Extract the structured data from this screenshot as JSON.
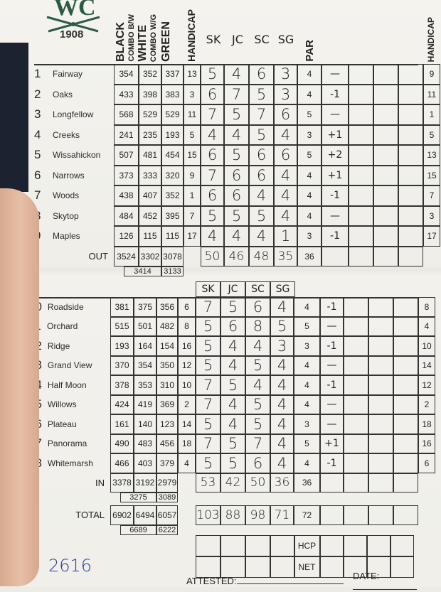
{
  "logo": {
    "letters": "WC",
    "year": "1908",
    "color": "#2d5a45"
  },
  "header": {
    "columns": [
      "BLACK",
      "COMBO B/W",
      "WHITE",
      "COMBO W/G",
      "GREEN",
      "HANDICAP"
    ],
    "players": [
      "SK",
      "JC",
      "SC",
      "SG"
    ],
    "par_label": "PAR",
    "right_handicap_label": "HANDICAP"
  },
  "front": {
    "holes": [
      {
        "num": "1",
        "name": "Fairway",
        "black": "354",
        "white": "352",
        "green": "337",
        "hcp": "13",
        "scores": [
          "5",
          "4",
          "6",
          "3"
        ],
        "par": "4",
        "mark": "—",
        "hcp2": "9"
      },
      {
        "num": "2",
        "name": "Oaks",
        "black": "433",
        "white": "398",
        "green": "383",
        "hcp": "3",
        "scores": [
          "6",
          "7",
          "5",
          "3"
        ],
        "par": "4",
        "mark": "-1",
        "hcp2": "11"
      },
      {
        "num": "3",
        "name": "Longfellow",
        "black": "568",
        "white": "529",
        "green": "529",
        "hcp": "11",
        "scores": [
          "7",
          "5",
          "7",
          "6"
        ],
        "par": "5",
        "mark": "—",
        "hcp2": "1"
      },
      {
        "num": "4",
        "name": "Creeks",
        "black": "241",
        "white": "235",
        "green": "193",
        "hcp": "5",
        "scores": [
          "4",
          "4",
          "5",
          "4"
        ],
        "par": "3",
        "mark": "+1",
        "hcp2": "5"
      },
      {
        "num": "5",
        "name": "Wissahickon",
        "black": "507",
        "white": "481",
        "green": "454",
        "hcp": "15",
        "scores": [
          "6",
          "5",
          "6",
          "6"
        ],
        "par": "5",
        "mark": "+2",
        "hcp2": "13"
      },
      {
        "num": "6",
        "name": "Narrows",
        "black": "373",
        "white": "333",
        "green": "320",
        "hcp": "9",
        "scores": [
          "7",
          "6",
          "6",
          "4"
        ],
        "par": "4",
        "mark": "+1",
        "hcp2": "15"
      },
      {
        "num": "7",
        "name": "Woods",
        "black": "438",
        "white": "407",
        "green": "352",
        "hcp": "1",
        "scores": [
          "6",
          "6",
          "4",
          "4"
        ],
        "par": "4",
        "mark": "-1",
        "hcp2": "7"
      },
      {
        "num": "8",
        "name": "Skytop",
        "black": "484",
        "white": "452",
        "green": "395",
        "hcp": "7",
        "scores": [
          "5",
          "5",
          "5",
          "4"
        ],
        "par": "4",
        "mark": "—",
        "hcp2": "3"
      },
      {
        "num": "9",
        "name": "Maples",
        "black": "126",
        "white": "115",
        "green": "115",
        "hcp": "17",
        "scores": [
          "4",
          "4",
          "4",
          "1"
        ],
        "par": "3",
        "mark": "-1",
        "hcp2": "17"
      }
    ],
    "total": {
      "label": "OUT",
      "black": "3524",
      "white": "3302",
      "green": "3078",
      "scores": [
        "50",
        "46",
        "48",
        "35"
      ],
      "par": "36",
      "combo_bw": "3414",
      "combo_wg": "3133"
    }
  },
  "back": {
    "players": [
      "SK",
      "JC",
      "SC",
      "SG"
    ],
    "holes": [
      {
        "num": "10",
        "name": "Roadside",
        "black": "381",
        "white": "375",
        "green": "356",
        "hcp": "6",
        "scores": [
          "7",
          "5",
          "6",
          "4"
        ],
        "par": "4",
        "mark": "-1",
        "hcp2": "8"
      },
      {
        "num": "11",
        "name": "Orchard",
        "black": "515",
        "white": "501",
        "green": "482",
        "hcp": "8",
        "scores": [
          "5",
          "6",
          "8",
          "5"
        ],
        "par": "5",
        "mark": "—",
        "hcp2": "4"
      },
      {
        "num": "12",
        "name": "Ridge",
        "black": "193",
        "white": "164",
        "green": "154",
        "hcp": "16",
        "scores": [
          "5",
          "4",
          "4",
          "3"
        ],
        "par": "3",
        "mark": "-1",
        "hcp2": "10"
      },
      {
        "num": "13",
        "name": "Grand View",
        "black": "370",
        "white": "354",
        "green": "350",
        "hcp": "12",
        "scores": [
          "5",
          "4",
          "5",
          "4"
        ],
        "par": "4",
        "mark": "—",
        "hcp2": "14"
      },
      {
        "num": "14",
        "name": "Half Moon",
        "black": "378",
        "white": "353",
        "green": "310",
        "hcp": "10",
        "scores": [
          "7",
          "5",
          "4",
          "4"
        ],
        "par": "4",
        "mark": "-1",
        "hcp2": "12"
      },
      {
        "num": "15",
        "name": "Willows",
        "black": "424",
        "white": "419",
        "green": "369",
        "hcp": "2",
        "scores": [
          "7",
          "4",
          "5",
          "4"
        ],
        "par": "4",
        "mark": "—",
        "hcp2": "2"
      },
      {
        "num": "16",
        "name": "Plateau",
        "black": "161",
        "white": "140",
        "green": "123",
        "hcp": "14",
        "scores": [
          "5",
          "4",
          "5",
          "4"
        ],
        "par": "3",
        "mark": "—",
        "hcp2": "18"
      },
      {
        "num": "17",
        "name": "Panorama",
        "black": "490",
        "white": "483",
        "green": "456",
        "hcp": "18",
        "scores": [
          "7",
          "5",
          "7",
          "4"
        ],
        "par": "5",
        "mark": "+1",
        "hcp2": "16"
      },
      {
        "num": "18",
        "name": "Whitemarsh",
        "black": "466",
        "white": "403",
        "green": "379",
        "hcp": "4",
        "scores": [
          "5",
          "5",
          "6",
          "4"
        ],
        "par": "4",
        "mark": "-1",
        "hcp2": "6"
      }
    ],
    "total": {
      "label": "IN",
      "black": "3378",
      "white": "3192",
      "green": "2979",
      "scores": [
        "53",
        "42",
        "50",
        "36"
      ],
      "par": "36",
      "combo_bw": "3275",
      "combo_wg": "3089"
    },
    "grand": {
      "label": "TOTAL",
      "black": "6902",
      "white": "6494",
      "green": "6057",
      "scores": [
        "103",
        "88",
        "98",
        "71"
      ],
      "par": "72",
      "combo_bw": "6689",
      "combo_wg": "6222"
    },
    "hcp_label": "HCP",
    "net_label": "NET"
  },
  "footer": {
    "handwritten_number": "2616",
    "attested_label": "ATTESTED:",
    "date_label": "DATE:"
  }
}
